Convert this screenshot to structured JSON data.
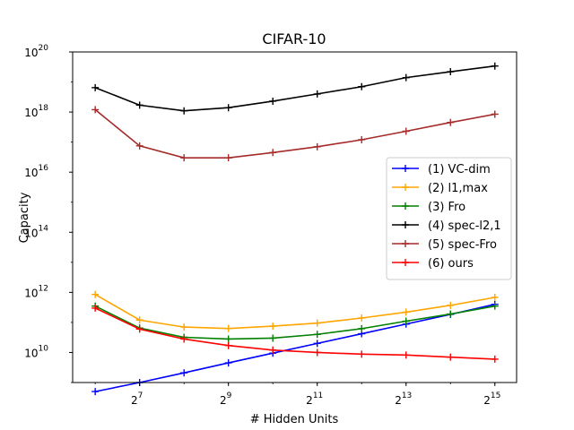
{
  "chart_data": {
    "type": "line",
    "title": "CIFAR-10",
    "xlabel": "# Hidden Units",
    "ylabel": "Capacity",
    "x_scale": "log2",
    "y_scale": "log10",
    "x": [
      64,
      128,
      256,
      512,
      1024,
      2048,
      4096,
      8192,
      16384,
      32768
    ],
    "xlim": [
      45,
      46000
    ],
    "ylim": [
      1000000000.0,
      1e+20
    ],
    "x_ticks": [
      {
        "value": 128,
        "base": "2",
        "exp": "7"
      },
      {
        "value": 512,
        "base": "2",
        "exp": "9"
      },
      {
        "value": 2048,
        "base": "2",
        "exp": "11"
      },
      {
        "value": 8192,
        "base": "2",
        "exp": "13"
      },
      {
        "value": 32768,
        "base": "2",
        "exp": "15"
      }
    ],
    "y_ticks": [
      {
        "value": 10000000000.0,
        "base": "10",
        "exp": "10"
      },
      {
        "value": 1000000000000.0,
        "base": "10",
        "exp": "12"
      },
      {
        "value": 100000000000000.0,
        "base": "10",
        "exp": "14"
      },
      {
        "value": 1e+16,
        "base": "10",
        "exp": "16"
      },
      {
        "value": 1e+18,
        "base": "10",
        "exp": "18"
      },
      {
        "value": 1e+20,
        "base": "10",
        "exp": "20"
      }
    ],
    "grid": false,
    "legend_position": "center-right",
    "series": [
      {
        "name": "(1) VC-dim",
        "color": "#0000ff",
        "values": [
          500000000.0,
          1000000000.0,
          2100000000.0,
          4500000000.0,
          9500000000.0,
          20000000000.0,
          42000000000.0,
          88000000000.0,
          185000000000.0,
          400000000000.0
        ]
      },
      {
        "name": "(2) l1,max",
        "color": "#ffa500",
        "values": [
          850000000000.0,
          120000000000.0,
          70000000000.0,
          63000000000.0,
          75000000000.0,
          95000000000.0,
          140000000000.0,
          220000000000.0,
          370000000000.0,
          680000000000.0
        ]
      },
      {
        "name": "(3) Fro",
        "color": "#008000",
        "values": [
          350000000000.0,
          65000000000.0,
          32000000000.0,
          28000000000.0,
          30000000000.0,
          40000000000.0,
          62000000000.0,
          110000000000.0,
          190000000000.0,
          350000000000.0
        ]
      },
      {
        "name": "(4) spec-l2,1",
        "color": "#000000",
        "values": [
          6.5e+18,
          1.7e+18,
          1.1e+18,
          1.4e+18,
          2.3e+18,
          4e+18,
          7e+18,
          1.4e+19,
          2.2e+19,
          3.4e+19
        ]
      },
      {
        "name": "(5) spec-Fro",
        "color": "#a52a2a",
        "values": [
          1.2e+18,
          7.5e+16,
          3e+16,
          3e+16,
          4.5e+16,
          7e+16,
          1.2e+17,
          2.3e+17,
          4.5e+17,
          8.5e+17
        ]
      },
      {
        "name": "(6) ours",
        "color": "#ff0000",
        "values": [
          300000000000.0,
          60000000000.0,
          28000000000.0,
          17000000000.0,
          12000000000.0,
          10000000000.0,
          8800000000.0,
          8200000000.0,
          7000000000.0,
          6000000000.0
        ]
      }
    ]
  }
}
